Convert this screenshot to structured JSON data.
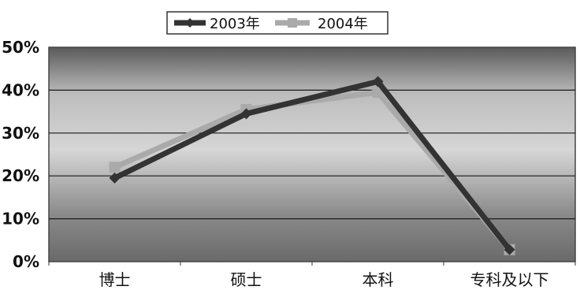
{
  "chart_data": {
    "type": "line",
    "categories": [
      "博士",
      "硕士",
      "本科",
      "专科及以下"
    ],
    "series": [
      {
        "name": "2003年",
        "values": [
          19.5,
          34.5,
          42.0,
          2.8
        ],
        "color": "#333333"
      },
      {
        "name": "2004年",
        "values": [
          22.0,
          35.5,
          39.5,
          2.8
        ],
        "color": "#aaaaaa"
      }
    ],
    "y_ticks": [
      "0%",
      "10%",
      "20%",
      "30%",
      "40%",
      "50%"
    ],
    "ylim": [
      0,
      50
    ],
    "grid": true,
    "legend_position": "top-center"
  }
}
